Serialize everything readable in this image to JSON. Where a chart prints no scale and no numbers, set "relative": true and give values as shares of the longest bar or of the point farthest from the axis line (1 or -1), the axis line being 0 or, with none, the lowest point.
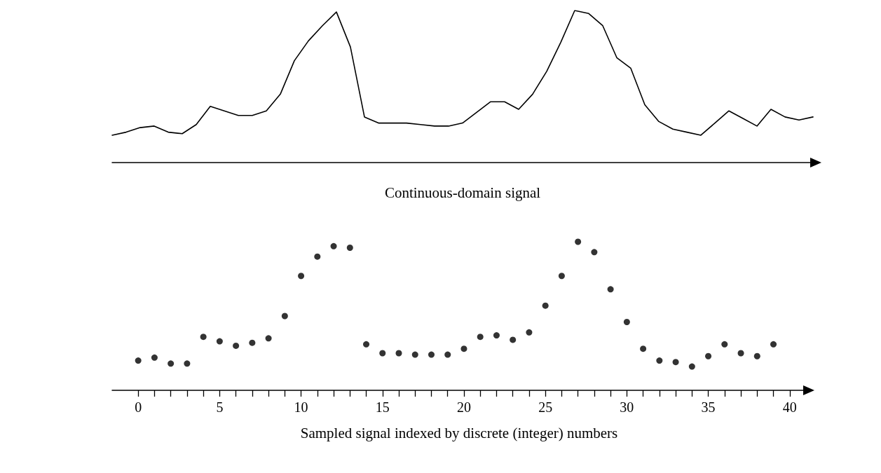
{
  "chart_data": [
    {
      "type": "line",
      "xlabel": "Continuous-domain signal",
      "relative": true,
      "tick_labels": false,
      "marker": "none",
      "line_style": "solid",
      "grid": false,
      "categories": [
        null,
        null,
        null,
        null,
        null,
        null,
        null,
        null,
        null,
        null,
        null,
        null,
        null,
        null,
        null,
        null,
        null,
        null,
        null,
        null,
        null,
        null,
        null,
        null,
        null,
        null,
        null,
        null,
        null,
        null,
        null,
        null,
        null,
        null,
        null,
        null,
        null,
        null,
        null,
        null,
        null,
        null,
        null,
        null,
        null,
        null,
        null,
        null,
        null,
        null,
        null
      ],
      "series": [
        {
          "color": "#000000",
          "values": [
            0.18,
            0.2,
            0.23,
            0.24,
            0.2,
            0.19,
            0.25,
            0.37,
            0.34,
            0.31,
            0.31,
            0.34,
            0.45,
            0.67,
            0.8,
            0.9,
            0.99,
            0.76,
            0.3,
            0.26,
            0.26,
            0.26,
            0.25,
            0.24,
            0.24,
            0.26,
            0.33,
            0.4,
            0.4,
            0.35,
            0.45,
            0.6,
            0.79,
            1,
            0.98,
            0.9,
            0.69,
            0.62,
            0.38,
            0.27,
            0.22,
            0.2,
            0.18,
            0.26,
            0.34,
            0.29,
            0.24,
            0.35,
            0.3,
            0.28,
            0.3
          ]
        }
      ]
    },
    {
      "type": "scatter",
      "xlabel": "Sampled signal indexed by discrete (integer) numbers",
      "relative": true,
      "tick_labels": "x",
      "marker": "circle",
      "grid": false,
      "x": [
        0,
        1,
        2,
        3,
        4,
        5,
        6,
        7,
        8,
        9,
        10,
        11,
        12,
        13,
        14,
        15,
        16,
        17,
        18,
        19,
        20,
        21,
        22,
        23,
        24,
        25,
        26,
        27,
        28,
        29,
        30,
        31,
        32,
        33,
        34,
        35,
        36,
        37,
        38,
        39
      ],
      "xlim": [
        -1.6,
        41
      ],
      "xticks": [
        0,
        {
          "value": 1,
          "label": null
        },
        {
          "value": 2,
          "label": null
        },
        {
          "value": 3,
          "label": null
        },
        {
          "value": 4,
          "label": null
        },
        5,
        {
          "value": 6,
          "label": null
        },
        {
          "value": 7,
          "label": null
        },
        {
          "value": 8,
          "label": null
        },
        {
          "value": 9,
          "label": null
        },
        10,
        {
          "value": 11,
          "label": null
        },
        {
          "value": 12,
          "label": null
        },
        {
          "value": 13,
          "label": null
        },
        {
          "value": 14,
          "label": null
        },
        15,
        {
          "value": 16,
          "label": null
        },
        {
          "value": 17,
          "label": null
        },
        {
          "value": 18,
          "label": null
        },
        {
          "value": 19,
          "label": null
        },
        20,
        {
          "value": 21,
          "label": null
        },
        {
          "value": 22,
          "label": null
        },
        {
          "value": 23,
          "label": null
        },
        {
          "value": 24,
          "label": null
        },
        25,
        {
          "value": 26,
          "label": null
        },
        {
          "value": 27,
          "label": null
        },
        {
          "value": 28,
          "label": null
        },
        {
          "value": 29,
          "label": null
        },
        30,
        {
          "value": 31,
          "label": null
        },
        {
          "value": 32,
          "label": null
        },
        {
          "value": 33,
          "label": null
        },
        {
          "value": 34,
          "label": null
        },
        35,
        {
          "value": 36,
          "label": null
        },
        {
          "value": 37,
          "label": null
        },
        {
          "value": 38,
          "label": null
        },
        {
          "value": 39,
          "label": null
        },
        40
      ],
      "series": [
        {
          "color": "#000000",
          "values": [
            0.2,
            0.22,
            0.18,
            0.18,
            0.36,
            0.33,
            0.3,
            0.32,
            0.35,
            0.5,
            0.77,
            0.9,
            0.97,
            0.96,
            0.31,
            0.25,
            0.25,
            0.24,
            0.24,
            0.24,
            0.28,
            0.36,
            0.37,
            0.34,
            0.39,
            0.57,
            0.77,
            1,
            0.93,
            0.68,
            0.46,
            0.28,
            0.2,
            0.19,
            0.16,
            0.23,
            0.31,
            0.25,
            0.23,
            0.31
          ]
        }
      ]
    }
  ]
}
